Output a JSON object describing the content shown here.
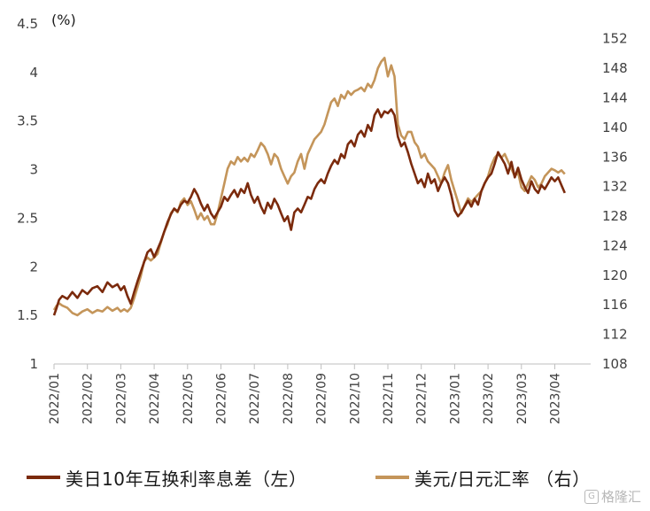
{
  "chart_data": {
    "type": "line",
    "left_axis": {
      "unit": "(%)",
      "ylim": [
        1,
        4.5
      ],
      "ticks": [
        "1",
        "1.5",
        "2",
        "2.5",
        "3",
        "3.5",
        "4",
        "4.5"
      ]
    },
    "right_axis": {
      "ylim": [
        108,
        154
      ],
      "ticks": [
        "108",
        "112",
        "116",
        "120",
        "124",
        "128",
        "132",
        "136",
        "140",
        "144",
        "148",
        "152"
      ]
    },
    "x_ticks": [
      "2022/01",
      "2022/02",
      "2022/03",
      "2022/04",
      "2022/05",
      "2022/06",
      "2022/07",
      "2022/08",
      "2022/09",
      "2022/10",
      "2022/11",
      "2022/12",
      "2023/01",
      "2023/02",
      "2023/03",
      "2023/04"
    ],
    "series": [
      {
        "name": "美日10年互换利率息差（左）",
        "axis": "left",
        "color": "#7b2a0c",
        "points": [
          [
            0.0,
            1.5
          ],
          [
            0.08,
            1.58
          ],
          [
            0.15,
            1.66
          ],
          [
            0.25,
            1.7
          ],
          [
            0.4,
            1.67
          ],
          [
            0.55,
            1.74
          ],
          [
            0.7,
            1.68
          ],
          [
            0.85,
            1.76
          ],
          [
            1.0,
            1.72
          ],
          [
            1.15,
            1.78
          ],
          [
            1.3,
            1.8
          ],
          [
            1.45,
            1.74
          ],
          [
            1.6,
            1.84
          ],
          [
            1.75,
            1.79
          ],
          [
            1.9,
            1.82
          ],
          [
            2.0,
            1.76
          ],
          [
            2.1,
            1.8
          ],
          [
            2.2,
            1.7
          ],
          [
            2.3,
            1.62
          ],
          [
            2.4,
            1.74
          ],
          [
            2.5,
            1.85
          ],
          [
            2.6,
            1.95
          ],
          [
            2.7,
            2.05
          ],
          [
            2.8,
            2.15
          ],
          [
            2.9,
            2.18
          ],
          [
            3.0,
            2.1
          ],
          [
            3.1,
            2.18
          ],
          [
            3.2,
            2.26
          ],
          [
            3.3,
            2.36
          ],
          [
            3.4,
            2.46
          ],
          [
            3.5,
            2.54
          ],
          [
            3.6,
            2.6
          ],
          [
            3.7,
            2.57
          ],
          [
            3.8,
            2.64
          ],
          [
            3.9,
            2.68
          ],
          [
            4.0,
            2.66
          ],
          [
            4.1,
            2.72
          ],
          [
            4.2,
            2.8
          ],
          [
            4.3,
            2.74
          ],
          [
            4.4,
            2.65
          ],
          [
            4.5,
            2.58
          ],
          [
            4.6,
            2.64
          ],
          [
            4.7,
            2.55
          ],
          [
            4.8,
            2.5
          ],
          [
            4.9,
            2.56
          ],
          [
            5.0,
            2.62
          ],
          [
            5.1,
            2.72
          ],
          [
            5.2,
            2.68
          ],
          [
            5.3,
            2.74
          ],
          [
            5.4,
            2.79
          ],
          [
            5.5,
            2.72
          ],
          [
            5.6,
            2.8
          ],
          [
            5.7,
            2.76
          ],
          [
            5.8,
            2.86
          ],
          [
            5.9,
            2.74
          ],
          [
            6.0,
            2.66
          ],
          [
            6.1,
            2.72
          ],
          [
            6.2,
            2.62
          ],
          [
            6.3,
            2.55
          ],
          [
            6.4,
            2.66
          ],
          [
            6.5,
            2.6
          ],
          [
            6.6,
            2.7
          ],
          [
            6.7,
            2.64
          ],
          [
            6.8,
            2.55
          ],
          [
            6.9,
            2.47
          ],
          [
            7.0,
            2.52
          ],
          [
            7.1,
            2.38
          ],
          [
            7.2,
            2.56
          ],
          [
            7.3,
            2.6
          ],
          [
            7.4,
            2.56
          ],
          [
            7.5,
            2.64
          ],
          [
            7.6,
            2.72
          ],
          [
            7.7,
            2.7
          ],
          [
            7.8,
            2.8
          ],
          [
            7.9,
            2.86
          ],
          [
            8.0,
            2.9
          ],
          [
            8.1,
            2.86
          ],
          [
            8.2,
            2.96
          ],
          [
            8.3,
            3.04
          ],
          [
            8.4,
            3.1
          ],
          [
            8.5,
            3.06
          ],
          [
            8.6,
            3.16
          ],
          [
            8.7,
            3.12
          ],
          [
            8.8,
            3.26
          ],
          [
            8.9,
            3.3
          ],
          [
            9.0,
            3.24
          ],
          [
            9.1,
            3.36
          ],
          [
            9.2,
            3.4
          ],
          [
            9.3,
            3.34
          ],
          [
            9.4,
            3.46
          ],
          [
            9.5,
            3.4
          ],
          [
            9.6,
            3.56
          ],
          [
            9.7,
            3.62
          ],
          [
            9.8,
            3.54
          ],
          [
            9.9,
            3.6
          ],
          [
            10.0,
            3.58
          ],
          [
            10.1,
            3.62
          ],
          [
            10.2,
            3.56
          ],
          [
            10.3,
            3.34
          ],
          [
            10.4,
            3.24
          ],
          [
            10.5,
            3.28
          ],
          [
            10.6,
            3.18
          ],
          [
            10.7,
            3.06
          ],
          [
            10.8,
            2.96
          ],
          [
            10.9,
            2.86
          ],
          [
            11.0,
            2.9
          ],
          [
            11.1,
            2.82
          ],
          [
            11.2,
            2.96
          ],
          [
            11.3,
            2.86
          ],
          [
            11.4,
            2.9
          ],
          [
            11.5,
            2.78
          ],
          [
            11.6,
            2.86
          ],
          [
            11.7,
            2.92
          ],
          [
            11.8,
            2.86
          ],
          [
            11.9,
            2.74
          ],
          [
            12.0,
            2.58
          ],
          [
            12.1,
            2.52
          ],
          [
            12.2,
            2.56
          ],
          [
            12.3,
            2.62
          ],
          [
            12.4,
            2.68
          ],
          [
            12.5,
            2.62
          ],
          [
            12.6,
            2.7
          ],
          [
            12.7,
            2.64
          ],
          [
            12.8,
            2.78
          ],
          [
            12.9,
            2.86
          ],
          [
            13.0,
            2.92
          ],
          [
            13.1,
            2.96
          ],
          [
            13.2,
            3.06
          ],
          [
            13.3,
            3.18
          ],
          [
            13.4,
            3.12
          ],
          [
            13.5,
            3.06
          ],
          [
            13.6,
            2.96
          ],
          [
            13.7,
            3.08
          ],
          [
            13.8,
            2.92
          ],
          [
            13.9,
            3.02
          ],
          [
            14.0,
            2.9
          ],
          [
            14.1,
            2.82
          ],
          [
            14.2,
            2.76
          ],
          [
            14.3,
            2.88
          ],
          [
            14.4,
            2.8
          ],
          [
            14.5,
            2.76
          ],
          [
            14.6,
            2.84
          ],
          [
            14.7,
            2.8
          ],
          [
            14.8,
            2.86
          ],
          [
            14.9,
            2.92
          ],
          [
            15.0,
            2.88
          ],
          [
            15.1,
            2.92
          ],
          [
            15.2,
            2.84
          ],
          [
            15.3,
            2.76
          ]
        ]
      },
      {
        "name": "美元/日元汇率 （右）",
        "axis": "right",
        "color": "#c4955a",
        "points": [
          [
            0.0,
            115.3
          ],
          [
            0.08,
            115.9
          ],
          [
            0.15,
            116.2
          ],
          [
            0.25,
            115.9
          ],
          [
            0.4,
            115.6
          ],
          [
            0.55,
            114.9
          ],
          [
            0.7,
            114.6
          ],
          [
            0.85,
            115.1
          ],
          [
            1.0,
            115.4
          ],
          [
            1.15,
            114.9
          ],
          [
            1.3,
            115.3
          ],
          [
            1.45,
            115.1
          ],
          [
            1.6,
            115.7
          ],
          [
            1.75,
            115.2
          ],
          [
            1.9,
            115.6
          ],
          [
            2.0,
            115.1
          ],
          [
            2.1,
            115.4
          ],
          [
            2.2,
            115.1
          ],
          [
            2.3,
            115.6
          ],
          [
            2.4,
            116.9
          ],
          [
            2.5,
            118.4
          ],
          [
            2.6,
            119.9
          ],
          [
            2.7,
            121.9
          ],
          [
            2.8,
            122.4
          ],
          [
            2.9,
            122.0
          ],
          [
            3.0,
            122.4
          ],
          [
            3.1,
            122.9
          ],
          [
            3.2,
            124.4
          ],
          [
            3.3,
            125.9
          ],
          [
            3.4,
            126.9
          ],
          [
            3.5,
            128.4
          ],
          [
            3.6,
            129.0
          ],
          [
            3.7,
            128.5
          ],
          [
            3.8,
            129.9
          ],
          [
            3.9,
            130.4
          ],
          [
            4.0,
            129.5
          ],
          [
            4.1,
            130.0
          ],
          [
            4.2,
            128.9
          ],
          [
            4.3,
            127.6
          ],
          [
            4.4,
            128.4
          ],
          [
            4.5,
            127.5
          ],
          [
            4.6,
            128.0
          ],
          [
            4.7,
            126.9
          ],
          [
            4.8,
            126.9
          ],
          [
            4.9,
            128.4
          ],
          [
            5.0,
            130.4
          ],
          [
            5.1,
            132.4
          ],
          [
            5.2,
            134.4
          ],
          [
            5.3,
            135.4
          ],
          [
            5.4,
            135.0
          ],
          [
            5.5,
            136.0
          ],
          [
            5.6,
            135.4
          ],
          [
            5.7,
            135.9
          ],
          [
            5.8,
            135.4
          ],
          [
            5.9,
            136.4
          ],
          [
            6.0,
            136.0
          ],
          [
            6.1,
            136.9
          ],
          [
            6.2,
            137.9
          ],
          [
            6.3,
            137.4
          ],
          [
            6.4,
            136.4
          ],
          [
            6.5,
            135.0
          ],
          [
            6.6,
            136.4
          ],
          [
            6.7,
            135.9
          ],
          [
            6.8,
            134.4
          ],
          [
            6.9,
            133.4
          ],
          [
            7.0,
            132.4
          ],
          [
            7.1,
            133.4
          ],
          [
            7.2,
            133.9
          ],
          [
            7.3,
            135.4
          ],
          [
            7.4,
            136.4
          ],
          [
            7.5,
            134.4
          ],
          [
            7.6,
            136.4
          ],
          [
            7.7,
            137.4
          ],
          [
            7.8,
            138.4
          ],
          [
            7.9,
            138.9
          ],
          [
            8.0,
            139.4
          ],
          [
            8.1,
            140.4
          ],
          [
            8.2,
            141.9
          ],
          [
            8.3,
            143.4
          ],
          [
            8.4,
            143.9
          ],
          [
            8.5,
            142.9
          ],
          [
            8.6,
            144.4
          ],
          [
            8.7,
            143.9
          ],
          [
            8.8,
            144.9
          ],
          [
            8.9,
            144.4
          ],
          [
            9.0,
            144.9
          ],
          [
            9.1,
            145.1
          ],
          [
            9.2,
            145.4
          ],
          [
            9.3,
            144.9
          ],
          [
            9.4,
            145.9
          ],
          [
            9.5,
            145.4
          ],
          [
            9.6,
            146.4
          ],
          [
            9.7,
            148.0
          ],
          [
            9.8,
            148.9
          ],
          [
            9.9,
            149.4
          ],
          [
            10.0,
            146.9
          ],
          [
            10.1,
            148.4
          ],
          [
            10.2,
            146.9
          ],
          [
            10.3,
            140.4
          ],
          [
            10.4,
            138.9
          ],
          [
            10.5,
            138.4
          ],
          [
            10.6,
            139.4
          ],
          [
            10.7,
            139.4
          ],
          [
            10.8,
            138.0
          ],
          [
            10.9,
            137.4
          ],
          [
            11.0,
            135.9
          ],
          [
            11.1,
            136.4
          ],
          [
            11.2,
            135.4
          ],
          [
            11.3,
            134.9
          ],
          [
            11.4,
            134.4
          ],
          [
            11.5,
            133.4
          ],
          [
            11.6,
            132.4
          ],
          [
            11.7,
            133.9
          ],
          [
            11.8,
            134.9
          ],
          [
            11.9,
            132.9
          ],
          [
            12.0,
            131.4
          ],
          [
            12.1,
            129.9
          ],
          [
            12.2,
            128.4
          ],
          [
            12.3,
            129.4
          ],
          [
            12.4,
            130.4
          ],
          [
            12.5,
            129.9
          ],
          [
            12.6,
            130.4
          ],
          [
            12.7,
            130.9
          ],
          [
            12.8,
            131.4
          ],
          [
            12.9,
            132.4
          ],
          [
            13.0,
            133.4
          ],
          [
            13.1,
            134.9
          ],
          [
            13.2,
            135.9
          ],
          [
            13.3,
            136.4
          ],
          [
            13.4,
            135.9
          ],
          [
            13.5,
            136.4
          ],
          [
            13.6,
            135.4
          ],
          [
            13.7,
            134.4
          ],
          [
            13.8,
            133.4
          ],
          [
            13.9,
            133.9
          ],
          [
            14.0,
            131.9
          ],
          [
            14.1,
            131.4
          ],
          [
            14.2,
            132.4
          ],
          [
            14.3,
            133.4
          ],
          [
            14.4,
            132.9
          ],
          [
            14.5,
            131.9
          ],
          [
            14.6,
            132.4
          ],
          [
            14.7,
            133.4
          ],
          [
            14.8,
            133.9
          ],
          [
            14.9,
            134.4
          ],
          [
            15.0,
            134.2
          ],
          [
            15.1,
            133.9
          ],
          [
            15.2,
            134.2
          ],
          [
            15.3,
            133.7
          ]
        ]
      }
    ],
    "legend_placement": "bottom",
    "grid": false
  },
  "legend": {
    "series1_label": "美日10年互换利率息差（左）",
    "series2_label": "美元/日元汇率 （右）",
    "series1_color": "#7b2a0c",
    "series2_color": "#c4955a"
  },
  "watermark": {
    "text": "格隆汇"
  }
}
